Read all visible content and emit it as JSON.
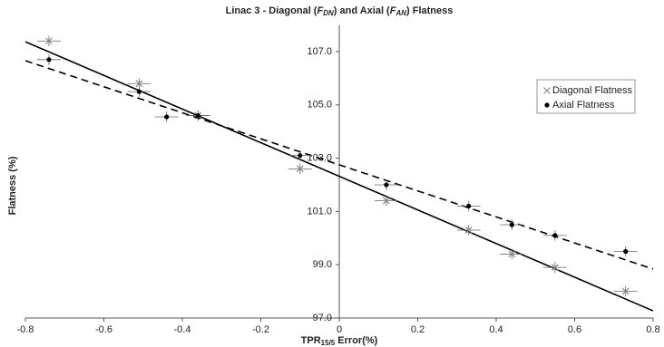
{
  "chart_data": {
    "type": "scatter",
    "title_parts": [
      "Linac 3 - Diagonal (",
      "F",
      "DN",
      ") and Axial (",
      "F",
      "AN",
      ") Flatness"
    ],
    "xlabel_parts": [
      "TPR",
      "15/5",
      " Error(%)"
    ],
    "ylabel": "Flatness (%)",
    "xlim": [
      -0.8,
      0.8
    ],
    "xticks": [
      -0.8,
      -0.6,
      -0.4,
      -0.2,
      0,
      0.2,
      0.4,
      0.6,
      0.8
    ],
    "ylim": [
      97,
      108
    ],
    "yticks": [
      {
        "value": 97,
        "label": "97.0"
      },
      {
        "value": 99,
        "label": "99.0"
      },
      {
        "value": 101,
        "label": "101.0"
      },
      {
        "value": 103,
        "label": "103.0"
      },
      {
        "value": 105,
        "label": "105.0"
      },
      {
        "value": 107,
        "label": "107.0"
      }
    ],
    "legend": "right",
    "series": [
      {
        "name": "Diagonal Flatness",
        "color": "#888888",
        "marker": "x",
        "line": "solid",
        "x": [
          -0.74,
          -0.51,
          -0.36,
          -0.1,
          0.12,
          0.33,
          0.44,
          0.55,
          0.73
        ],
        "values": [
          107.4,
          105.8,
          104.6,
          102.6,
          101.4,
          100.3,
          99.4,
          98.9,
          98.0
        ],
        "x_error": 0.03,
        "y_error": 0.2,
        "trend_x": [
          -0.8,
          0.8
        ],
        "trend_values": [
          107.37,
          97.27
        ]
      },
      {
        "name": "Axial Flatness",
        "color": "#000000",
        "marker": "dot",
        "line": "dashed",
        "x": [
          -0.74,
          -0.51,
          -0.44,
          -0.36,
          -0.1,
          0.12,
          0.33,
          0.44,
          0.55,
          0.73
        ],
        "values": [
          106.7,
          105.5,
          104.55,
          104.6,
          103.1,
          102.0,
          101.2,
          100.5,
          100.1,
          99.5
        ],
        "x_error": 0.03,
        "y_error": 0.2,
        "trend_x": [
          -0.8,
          0.8
        ],
        "trend_values": [
          106.66,
          98.84
        ]
      }
    ]
  }
}
